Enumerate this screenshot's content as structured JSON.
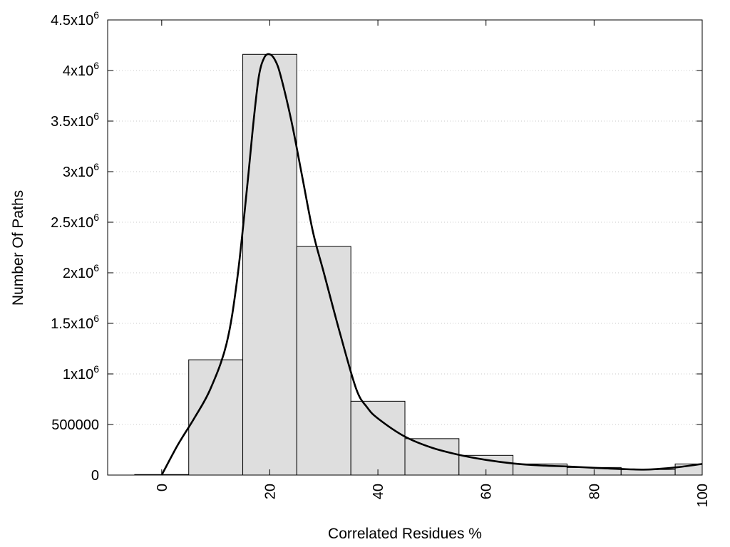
{
  "chart_data": {
    "type": "bar",
    "xlabel": "Correlated Residues %",
    "ylabel": "Number Of Paths",
    "xlim": [
      -10,
      100
    ],
    "ylim": [
      0,
      4500000
    ],
    "grid": "horizontal dotted",
    "legend": "none",
    "bin_width": 10,
    "x_ticks": [
      {
        "value": 0,
        "label": "0"
      },
      {
        "value": 20,
        "label": "20"
      },
      {
        "value": 40,
        "label": "40"
      },
      {
        "value": 60,
        "label": "60"
      },
      {
        "value": 80,
        "label": "80"
      },
      {
        "value": 100,
        "label": "100"
      }
    ],
    "y_ticks": [
      {
        "value": 0,
        "base": "0",
        "exp": ""
      },
      {
        "value": 500000,
        "base": "500000",
        "exp": ""
      },
      {
        "value": 1000000,
        "base": "1x10",
        "exp": "6"
      },
      {
        "value": 1500000,
        "base": "1.5x10",
        "exp": "6"
      },
      {
        "value": 2000000,
        "base": "2x10",
        "exp": "6"
      },
      {
        "value": 2500000,
        "base": "2.5x10",
        "exp": "6"
      },
      {
        "value": 3000000,
        "base": "3x10",
        "exp": "6"
      },
      {
        "value": 3500000,
        "base": "3.5x10",
        "exp": "6"
      },
      {
        "value": 4000000,
        "base": "4x10",
        "exp": "6"
      },
      {
        "value": 4500000,
        "base": "4.5x10",
        "exp": "6"
      }
    ],
    "bins": [
      {
        "x": 0,
        "value": 5000
      },
      {
        "x": 10,
        "value": 1140000
      },
      {
        "x": 20,
        "value": 4160000
      },
      {
        "x": 30,
        "value": 2260000
      },
      {
        "x": 40,
        "value": 730000
      },
      {
        "x": 50,
        "value": 360000
      },
      {
        "x": 60,
        "value": 195000
      },
      {
        "x": 70,
        "value": 110000
      },
      {
        "x": 80,
        "value": 75000
      },
      {
        "x": 90,
        "value": 55000
      },
      {
        "x": 100,
        "value": 110000
      }
    ],
    "curve": {
      "x": [
        0,
        3,
        6,
        9,
        12,
        14,
        16,
        17,
        18,
        19,
        20,
        21,
        22,
        24,
        26,
        28,
        30,
        33,
        36,
        38,
        40,
        45,
        50,
        55,
        60,
        65,
        70,
        75,
        80,
        85,
        90,
        95,
        100
      ],
      "y": [
        0,
        300000,
        560000,
        850000,
        1300000,
        1950000,
        2950000,
        3500000,
        3950000,
        4130000,
        4160000,
        4100000,
        3950000,
        3500000,
        2950000,
        2400000,
        2000000,
        1400000,
        850000,
        670000,
        560000,
        380000,
        270000,
        200000,
        150000,
        115000,
        95000,
        85000,
        72000,
        60000,
        55000,
        75000,
        110000
      ]
    }
  }
}
